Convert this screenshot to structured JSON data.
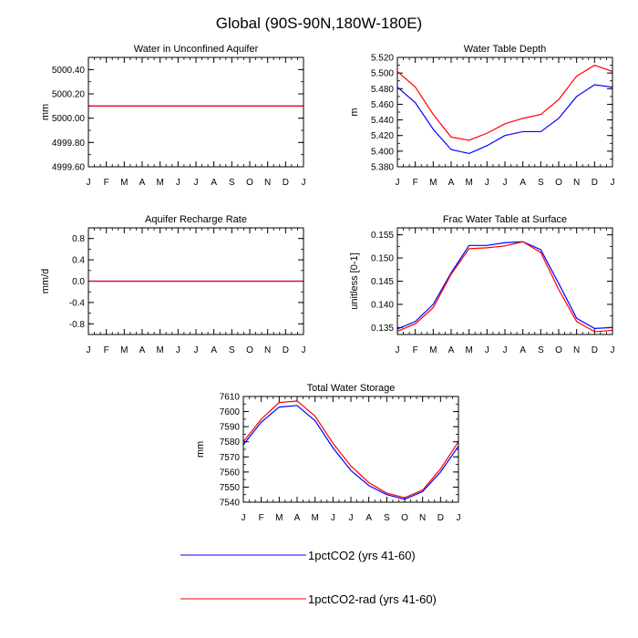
{
  "title": "Global (90S-90N,180W-180E)",
  "colors": {
    "series1": "#0000ff",
    "series2": "#ff0000"
  },
  "legend": [
    {
      "label": "1pctCO2 (yrs 41-60)",
      "color": "#0000ff"
    },
    {
      "label": "1pctCO2-rad (yrs 41-60)",
      "color": "#ff0000"
    }
  ],
  "chart_data": [
    {
      "type": "line",
      "title": "Water in Unconfined Aquifer",
      "ylabel": "mm",
      "categories": [
        "J",
        "F",
        "M",
        "A",
        "M",
        "J",
        "J",
        "A",
        "S",
        "O",
        "N",
        "D",
        "J"
      ],
      "ylim": [
        4999.6,
        5000.5
      ],
      "yticks": [
        4999.6,
        4999.8,
        5000.0,
        5000.2,
        5000.4
      ],
      "ytick_labels": [
        "4999.60",
        "4999.80",
        "5000.00",
        "5000.20",
        "5000.40"
      ],
      "series": [
        {
          "name": "1pctCO2 (yrs 41-60)",
          "color": "#0000ff",
          "values": [
            5000.1,
            5000.1,
            5000.1,
            5000.1,
            5000.1,
            5000.1,
            5000.1,
            5000.1,
            5000.1,
            5000.1,
            5000.1,
            5000.1,
            5000.1
          ]
        },
        {
          "name": "1pctCO2-rad (yrs 41-60)",
          "color": "#ff0000",
          "values": [
            5000.1,
            5000.1,
            5000.1,
            5000.1,
            5000.1,
            5000.1,
            5000.1,
            5000.1,
            5000.1,
            5000.1,
            5000.1,
            5000.1,
            5000.1
          ]
        }
      ]
    },
    {
      "type": "line",
      "title": "Water Table Depth",
      "ylabel": "m",
      "categories": [
        "J",
        "F",
        "M",
        "A",
        "M",
        "J",
        "J",
        "A",
        "S",
        "O",
        "N",
        "D",
        "J"
      ],
      "ylim": [
        5.38,
        5.52
      ],
      "yticks": [
        5.38,
        5.4,
        5.42,
        5.44,
        5.46,
        5.48,
        5.5,
        5.52
      ],
      "ytick_labels": [
        "5.380",
        "5.400",
        "5.420",
        "5.440",
        "5.460",
        "5.480",
        "5.500",
        "5.520"
      ],
      "series": [
        {
          "name": "1pctCO2 (yrs 41-60)",
          "color": "#0000ff",
          "values": [
            5.482,
            5.462,
            5.428,
            5.402,
            5.397,
            5.407,
            5.42,
            5.425,
            5.425,
            5.442,
            5.47,
            5.485,
            5.482
          ]
        },
        {
          "name": "1pctCO2-rad (yrs 41-60)",
          "color": "#ff0000",
          "values": [
            5.502,
            5.482,
            5.447,
            5.418,
            5.414,
            5.423,
            5.435,
            5.442,
            5.447,
            5.466,
            5.496,
            5.51,
            5.502
          ]
        }
      ]
    },
    {
      "type": "line",
      "title": "Aquifer Recharge Rate",
      "ylabel": "mm/d",
      "categories": [
        "J",
        "F",
        "M",
        "A",
        "M",
        "J",
        "J",
        "A",
        "S",
        "O",
        "N",
        "D",
        "J"
      ],
      "ylim": [
        -1.0,
        1.0
      ],
      "yticks": [
        -0.8,
        -0.4,
        0.0,
        0.4,
        0.8
      ],
      "ytick_labels": [
        "-0.8",
        "-0.4",
        "0.0",
        "0.4",
        "0.8"
      ],
      "series": [
        {
          "name": "1pctCO2 (yrs 41-60)",
          "color": "#0000ff",
          "values": [
            0,
            0,
            0,
            0,
            0,
            0,
            0,
            0,
            0,
            0,
            0,
            0,
            0
          ]
        },
        {
          "name": "1pctCO2-rad (yrs 41-60)",
          "color": "#ff0000",
          "values": [
            0,
            0,
            0,
            0,
            0,
            0,
            0,
            0,
            0,
            0,
            0,
            0,
            0
          ]
        }
      ]
    },
    {
      "type": "line",
      "title": "Frac Water Table at Surface",
      "ylabel": "unitless [0-1]",
      "categories": [
        "J",
        "F",
        "M",
        "A",
        "M",
        "J",
        "J",
        "A",
        "S",
        "O",
        "N",
        "D",
        "J"
      ],
      "ylim": [
        0.1335,
        0.1565
      ],
      "yticks": [
        0.135,
        0.14,
        0.145,
        0.15,
        0.155
      ],
      "ytick_labels": [
        "0.135",
        "0.140",
        "0.145",
        "0.150",
        "0.155"
      ],
      "series": [
        {
          "name": "1pctCO2 (yrs 41-60)",
          "color": "#0000ff",
          "values": [
            0.1347,
            0.1363,
            0.14,
            0.1468,
            0.1527,
            0.1527,
            0.1533,
            0.1535,
            0.1518,
            0.1445,
            0.137,
            0.1348,
            0.135
          ]
        },
        {
          "name": "1pctCO2-rad (yrs 41-60)",
          "color": "#ff0000",
          "values": [
            0.1342,
            0.1358,
            0.1393,
            0.1465,
            0.152,
            0.1522,
            0.1526,
            0.1535,
            0.1512,
            0.1432,
            0.1363,
            0.1341,
            0.1344
          ]
        }
      ]
    },
    {
      "type": "line",
      "title": "Total Water Storage",
      "ylabel": "mm",
      "categories": [
        "J",
        "F",
        "M",
        "A",
        "M",
        "J",
        "J",
        "A",
        "S",
        "O",
        "N",
        "D",
        "J"
      ],
      "ylim": [
        7540,
        7610
      ],
      "yticks": [
        7540,
        7550,
        7560,
        7570,
        7580,
        7590,
        7600,
        7610
      ],
      "ytick_labels": [
        "7540",
        "7550",
        "7560",
        "7570",
        "7580",
        "7590",
        "7600",
        "7610"
      ],
      "series": [
        {
          "name": "1pctCO2 (yrs 41-60)",
          "color": "#0000ff",
          "values": [
            7578,
            7593,
            7603,
            7604,
            7594,
            7576,
            7561,
            7551,
            7545,
            7542,
            7547,
            7560,
            7577
          ]
        },
        {
          "name": "1pctCO2-rad (yrs 41-60)",
          "color": "#ff0000",
          "values": [
            7580,
            7595,
            7606,
            7607,
            7597,
            7579,
            7564,
            7553,
            7546,
            7543,
            7548,
            7562,
            7580
          ]
        }
      ]
    }
  ]
}
